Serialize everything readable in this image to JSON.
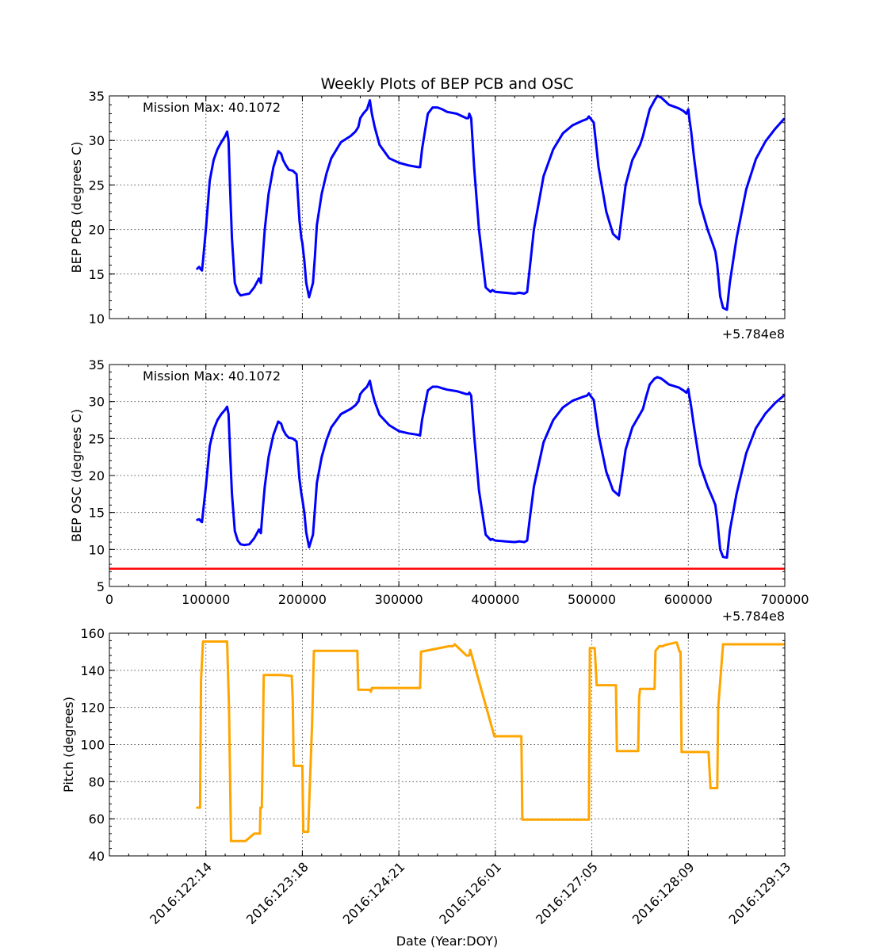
{
  "figure_title": "Weekly Plots of BEP PCB and OSC",
  "colors": {
    "series": "#0000ff",
    "limit": "#ff0000",
    "pitch": "#ffa500",
    "grid": "#555555"
  },
  "chart_data": [
    {
      "type": "line",
      "title": "Weekly Plots of BEP PCB and OSC",
      "ylabel": "BEP PCB (degrees C)",
      "xlim": [
        0,
        700000
      ],
      "ylim": [
        10,
        35
      ],
      "y_ticks": [
        10,
        15,
        20,
        25,
        30,
        35
      ],
      "x_grid": [
        100000,
        200000,
        300000,
        400000,
        500000,
        600000
      ],
      "x_tick_labels_shown": false,
      "offset_label": "+5.784e8",
      "annotation": "Mission Max: 40.1072",
      "grid": true,
      "series": [
        {
          "color": "#0000ff",
          "x": [
            91000,
            93000,
            95000,
            96000,
            97000,
            100000,
            104000,
            108000,
            112000,
            116000,
            120000,
            122000,
            123500,
            125000,
            127000,
            130000,
            133000,
            136000,
            140000,
            145000,
            150000,
            155000,
            157000,
            159000,
            161000,
            165000,
            170000,
            175000,
            178000,
            180000,
            183000,
            186000,
            190000,
            194000,
            197000,
            199000,
            200000,
            202000,
            204000,
            207000,
            211000,
            213000,
            215000,
            220000,
            225000,
            230000,
            240000,
            250000,
            255000,
            258000,
            260000,
            263000,
            267000,
            270000,
            272000,
            275000,
            280000,
            290000,
            300000,
            310000,
            320000,
            322000,
            324000,
            327000,
            330000,
            335000,
            340000,
            345000,
            350000,
            360000,
            370000,
            372000,
            373000,
            375000,
            378000,
            383000,
            390000,
            395000,
            397000,
            400000,
            410000,
            420000,
            425000,
            430000,
            433000,
            436000,
            440000,
            450000,
            460000,
            470000,
            480000,
            490000,
            495000,
            497000,
            499000,
            502000,
            507000,
            515000,
            522000,
            528000,
            531000,
            535000,
            542000,
            550000,
            553000,
            556000,
            560000,
            565000,
            568000,
            572000,
            575000,
            580000,
            590000,
            595000,
            598000,
            600000,
            601000,
            603000,
            606000,
            612000,
            620000,
            625000,
            628000,
            630000,
            633000,
            636000,
            640000,
            643000,
            650000,
            660000,
            670000,
            680000,
            690000,
            699000
          ],
          "y": [
            15.6,
            15.8,
            15.5,
            15.4,
            16.5,
            20,
            25.5,
            27.8,
            29,
            29.8,
            30.5,
            31,
            30,
            25,
            19,
            14,
            13,
            12.6,
            12.7,
            12.8,
            13.5,
            14.5,
            14,
            17,
            20,
            24,
            27,
            28.8,
            28.5,
            27.8,
            27.2,
            26.7,
            26.6,
            26.2,
            21,
            19,
            18.5,
            16.5,
            14,
            12.4,
            14,
            17,
            20.5,
            24,
            26.3,
            28,
            29.8,
            30.5,
            31,
            31.5,
            32.5,
            33,
            33.5,
            34.5,
            33,
            31.5,
            29.5,
            28,
            27.5,
            27.2,
            27,
            27,
            29,
            31,
            33,
            33.7,
            33.7,
            33.5,
            33.2,
            33,
            32.5,
            32.5,
            33,
            32.5,
            27,
            20,
            13.5,
            13,
            13.2,
            13,
            12.9,
            12.8,
            12.9,
            12.8,
            13,
            16,
            20,
            26,
            29,
            30.8,
            31.7,
            32.2,
            32.4,
            32.7,
            32.4,
            32,
            27,
            22,
            19.5,
            18.9,
            21.5,
            25,
            27.8,
            29.5,
            30.5,
            31.8,
            33.5,
            34.5,
            35,
            34.8,
            34.5,
            34,
            33.6,
            33.3,
            33,
            33.5,
            32.5,
            31,
            28,
            23,
            20,
            18.5,
            17.5,
            16,
            12.5,
            11.2,
            11,
            14,
            19,
            24.5,
            27.9,
            29.9,
            31.3,
            32.4
          ]
        }
      ]
    },
    {
      "type": "line",
      "ylabel": "BEP OSC (degrees C)",
      "xlim": [
        0,
        700000
      ],
      "ylim": [
        5,
        35
      ],
      "y_ticks": [
        5,
        10,
        15,
        20,
        25,
        30,
        35
      ],
      "x_ticks": [
        0,
        100000,
        200000,
        300000,
        400000,
        500000,
        600000,
        700000
      ],
      "x_tick_labels": [
        "0",
        "100000",
        "200000",
        "300000",
        "400000",
        "500000",
        "600000",
        "700000"
      ],
      "offset_label": "+5.784e8",
      "annotation": "Mission Max: 40.1072",
      "limit_line": 7.4,
      "grid": true,
      "series": [
        {
          "color": "#0000ff",
          "x": [
            91000,
            93000,
            95000,
            96000,
            97000,
            100000,
            104000,
            108000,
            112000,
            116000,
            120000,
            122000,
            123500,
            125000,
            127000,
            130000,
            133000,
            136000,
            140000,
            145000,
            150000,
            155000,
            157000,
            159000,
            161000,
            165000,
            170000,
            175000,
            178000,
            180000,
            183000,
            186000,
            190000,
            194000,
            197000,
            199000,
            200000,
            202000,
            204000,
            207000,
            211000,
            213000,
            215000,
            220000,
            225000,
            230000,
            240000,
            250000,
            255000,
            258000,
            260000,
            263000,
            267000,
            270000,
            272000,
            275000,
            280000,
            290000,
            300000,
            310000,
            320000,
            322000,
            324000,
            327000,
            330000,
            335000,
            340000,
            345000,
            350000,
            360000,
            370000,
            372000,
            373000,
            375000,
            378000,
            383000,
            390000,
            395000,
            397000,
            400000,
            410000,
            420000,
            425000,
            430000,
            433000,
            436000,
            440000,
            450000,
            460000,
            470000,
            480000,
            490000,
            495000,
            497000,
            499000,
            502000,
            507000,
            515000,
            522000,
            528000,
            531000,
            535000,
            542000,
            550000,
            553000,
            556000,
            560000,
            565000,
            568000,
            572000,
            575000,
            580000,
            590000,
            595000,
            598000,
            600000,
            601000,
            603000,
            606000,
            612000,
            620000,
            625000,
            628000,
            630000,
            633000,
            636000,
            640000,
            643000,
            650000,
            660000,
            670000,
            680000,
            690000,
            699000
          ],
          "y": [
            14,
            14.1,
            13.8,
            13.7,
            15,
            18.5,
            24,
            26.2,
            27.5,
            28.3,
            28.9,
            29.3,
            28.3,
            23.5,
            17.5,
            12.5,
            11.2,
            10.7,
            10.6,
            10.7,
            11.5,
            12.7,
            12.2,
            15.5,
            18.5,
            22.5,
            25.5,
            27.3,
            27,
            26.2,
            25.5,
            25.1,
            25,
            24.6,
            19.5,
            17.5,
            16.8,
            15,
            12.3,
            10.3,
            12,
            15.5,
            19,
            22.5,
            24.8,
            26.5,
            28.3,
            29,
            29.5,
            30,
            31,
            31.5,
            32,
            32.8,
            31.5,
            30,
            28.2,
            26.8,
            26,
            25.7,
            25.5,
            25.4,
            27.5,
            29.5,
            31.5,
            32,
            32,
            31.8,
            31.6,
            31.4,
            31,
            31,
            31.2,
            30.8,
            25.5,
            18,
            12,
            11.3,
            11.4,
            11.2,
            11.1,
            11,
            11.1,
            11,
            11.2,
            14.5,
            18.5,
            24.5,
            27.5,
            29.2,
            30.1,
            30.6,
            30.8,
            31.1,
            30.7,
            30.2,
            25.5,
            20.5,
            18,
            17.3,
            19.8,
            23.5,
            26.5,
            28.3,
            29,
            30.5,
            32.3,
            33.1,
            33.3,
            33.1,
            32.8,
            32.3,
            31.9,
            31.5,
            31.2,
            31.7,
            30.8,
            29.3,
            26.5,
            21.5,
            18.5,
            17,
            16,
            14,
            10,
            9,
            8.9,
            12.5,
            17.5,
            23,
            26.4,
            28.4,
            29.8,
            30.8
          ]
        }
      ]
    },
    {
      "type": "line",
      "ylabel": "Pitch (degrees)",
      "xlabel": "Date (Year:DOY)",
      "xlim": [
        0,
        700000
      ],
      "ylim": [
        40,
        160
      ],
      "y_ticks": [
        40,
        60,
        80,
        100,
        120,
        140,
        160
      ],
      "x_ticks": [
        100000,
        200000,
        300000,
        400000,
        500000,
        600000,
        700000
      ],
      "x_tick_labels": [
        "2016:122:14",
        "2016:123:18",
        "2016:124:21",
        "2016:126:01",
        "2016:127:05",
        "2016:128:09",
        "2016:129:13"
      ],
      "grid": true,
      "series": [
        {
          "color": "#ffa500",
          "x": [
            91000,
            94000,
            95000,
            97000,
            122000,
            124000,
            126000,
            140000,
            141000,
            150000,
            151000,
            151500,
            156000,
            156500,
            158000,
            159000,
            160000,
            178000,
            189000,
            190000,
            191000,
            200000,
            201000,
            205000,
            206000,
            210000,
            212000,
            214000,
            215000,
            257000,
            258000,
            260000,
            270000,
            271000,
            272000,
            300000,
            320000,
            321000,
            322000,
            323000,
            352000,
            355000,
            356000,
            358000,
            370000,
            371000,
            373000,
            374000,
            399000,
            400000,
            401000,
            427000,
            428000,
            429000,
            430000,
            497000,
            498000,
            500000,
            502000,
            503000,
            505000,
            525000,
            526000,
            528000,
            548000,
            549000,
            550000,
            552000,
            565000,
            566000,
            570000,
            574000,
            575000,
            587000,
            588000,
            591000,
            592000,
            593000,
            594000,
            620000,
            621000,
            623000,
            624000,
            630000,
            631000,
            636000,
            637000,
            638000,
            640000,
            699000
          ],
          "y": [
            66,
            66,
            135,
            155.5,
            155.5,
            120,
            48,
            48,
            48,
            52,
            52,
            52,
            52,
            66,
            66,
            100,
            137.5,
            137.5,
            137,
            124,
            88.5,
            88.5,
            53,
            53,
            53,
            110,
            150.5,
            150.5,
            150.5,
            150.5,
            129.5,
            129.5,
            129.5,
            128.5,
            130.5,
            130.5,
            130.5,
            130.5,
            130.5,
            150,
            153,
            153,
            153,
            154,
            148,
            148,
            148,
            151,
            104.5,
            104.5,
            104.5,
            104.5,
            59.5,
            59.5,
            59.5,
            59.5,
            152,
            152,
            152,
            152,
            132,
            132,
            96.5,
            96.5,
            96.5,
            125,
            130,
            130,
            130,
            150.5,
            153,
            153,
            153.5,
            155,
            155,
            150,
            150,
            96,
            96,
            96,
            96,
            76.5,
            76.5,
            76.5,
            120,
            154,
            154,
            154,
            154,
            154
          ]
        }
      ]
    }
  ]
}
